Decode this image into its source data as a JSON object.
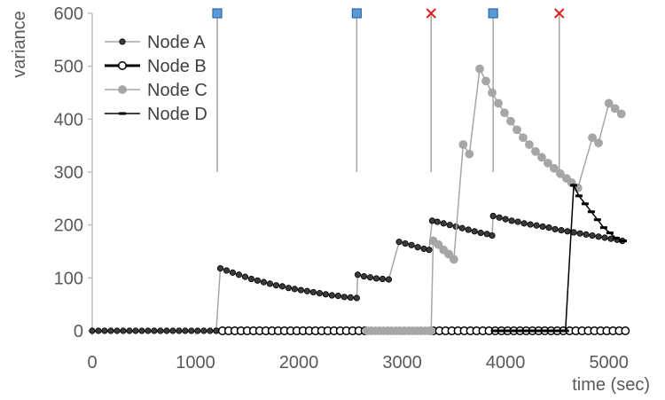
{
  "chart_data": {
    "type": "line",
    "title": "",
    "xlabel": "time (sec)",
    "ylabel": "variance",
    "xlim": [
      0,
      5200
    ],
    "ylim": [
      0,
      600
    ],
    "xticks": [
      0,
      1000,
      2000,
      3000,
      4000,
      5000
    ],
    "yticks": [
      0,
      100,
      200,
      300,
      400,
      500,
      600
    ],
    "grid": false,
    "legend_position": "top-left",
    "events": [
      {
        "x": 1210,
        "type": "square",
        "color": "#5b9bd5"
      },
      {
        "x": 2560,
        "type": "square",
        "color": "#5b9bd5"
      },
      {
        "x": 3280,
        "type": "cross",
        "color": "#e02020"
      },
      {
        "x": 3880,
        "type": "square",
        "color": "#5b9bd5"
      },
      {
        "x": 4520,
        "type": "cross",
        "color": "#e02020"
      }
    ],
    "event_line_ylim": [
      300,
      600
    ],
    "series": [
      {
        "name": "Node A",
        "style": "thin-gray-line-dark-dots",
        "segments": [
          {
            "x": [
              0,
              60,
              120,
              180,
              240,
              300,
              360,
              420,
              480,
              540,
              600,
              660,
              720,
              780,
              840,
              900,
              960,
              1020,
              1080,
              1140,
              1200
            ],
            "y": [
              0,
              0,
              0,
              0,
              0,
              0,
              0,
              0,
              0,
              0,
              0,
              0,
              0,
              0,
              0,
              0,
              0,
              0,
              0,
              0,
              0
            ]
          },
          {
            "x": [
              1200,
              1240,
              1300,
              1360,
              1420,
              1480,
              1540,
              1600,
              1660,
              1720,
              1780,
              1840,
              1900,
              1960,
              2020,
              2080,
              2140,
              2200,
              2260,
              2320,
              2380,
              2440,
              2500,
              2560,
              2570,
              2630,
              2690,
              2750,
              2810,
              2870,
              2970,
              3030,
              3090,
              3150,
              3210,
              3260,
              3290,
              3340,
              3400,
              3460,
              3520,
              3580,
              3640,
              3700,
              3760,
              3820,
              3870,
              3880,
              3940,
              4000,
              4060,
              4120,
              4180,
              4240,
              4300,
              4360,
              4420,
              4480,
              4540,
              4600,
              4660,
              4720,
              4780,
              4840,
              4900,
              4960,
              5020,
              5080,
              5130
            ],
            "y": [
              0,
              118,
              114,
              110,
              106,
              102,
              98,
              95,
              92,
              89,
              86,
              84,
              81,
              79,
              77,
              75,
              73,
              71,
              69,
              67,
              66,
              64,
              63,
              62,
              106,
              103,
              101,
              99,
              98,
              97,
              168,
              165,
              162,
              158,
              155,
              153,
              208,
              206,
              203,
              200,
              197,
              194,
              191,
              188,
              185,
              183,
              180,
              217,
              214,
              211,
              208,
              206,
              203,
              201,
              199,
              197,
              195,
              192,
              190,
              188,
              186,
              184,
              182,
              180,
              178,
              176,
              174,
              172,
              170
            ]
          }
        ]
      },
      {
        "name": "Node B",
        "style": "thick-black-line-open-circles",
        "segments": [
          {
            "x": [
              1260,
              1320,
              1380,
              1440,
              1500,
              1560,
              1620,
              1680,
              1740,
              1800,
              1860,
              1920,
              1980,
              2040,
              2100,
              2160,
              2220,
              2280,
              2340,
              2400,
              2460,
              2520,
              2580,
              2640,
              3300,
              3360,
              3420,
              3480,
              3540,
              3600,
              3660,
              3720,
              3780,
              3840,
              3900,
              3960,
              4020,
              4080,
              4140,
              4200,
              4260,
              4320,
              4380,
              4440,
              4500,
              4560,
              4620,
              4680,
              4740,
              4800,
              4860,
              4920,
              4980,
              5040,
              5100,
              5160
            ],
            "y": [
              0,
              0,
              0,
              0,
              0,
              0,
              0,
              0,
              0,
              0,
              0,
              0,
              0,
              0,
              0,
              0,
              0,
              0,
              0,
              0,
              0,
              0,
              0,
              0,
              0,
              0,
              0,
              0,
              0,
              0,
              0,
              0,
              0,
              0,
              0,
              0,
              0,
              0,
              0,
              0,
              0,
              0,
              0,
              0,
              0,
              0,
              0,
              0,
              0,
              0,
              0,
              0,
              0,
              0,
              0,
              0
            ]
          }
        ]
      },
      {
        "name": "Node C",
        "style": "gray-line-gray-dots",
        "segments": [
          {
            "x": [
              2660,
              2700,
              2740,
              2780,
              2820,
              2860,
              2900,
              2940,
              2980,
              3020,
              3060,
              3100,
              3140,
              3180,
              3220,
              3260,
              3280,
              3300,
              3350,
              3400,
              3450,
              3500,
              3590,
              3650,
              3750,
              3810,
              3870,
              3930,
              3990,
              4050,
              4110,
              4170,
              4230,
              4290,
              4350,
              4410,
              4470,
              4530,
              4590,
              4640,
              4700,
              4840,
              4900,
              5000,
              5060,
              5120
            ],
            "y": [
              0,
              0,
              0,
              0,
              0,
              0,
              0,
              0,
              0,
              0,
              0,
              0,
              0,
              0,
              0,
              0,
              0,
              170,
              163,
              153,
              145,
              135,
              352,
              334,
              495,
              472,
              450,
              430,
              412,
              396,
              380,
              365,
              352,
              339,
              328,
              317,
              307,
              297,
              288,
              280,
              270,
              365,
              355,
              430,
              420,
              410
            ]
          }
        ]
      },
      {
        "name": "Node D",
        "style": "black-line-dash-markers",
        "segments": [
          {
            "x": [
              3900,
              3940,
              3980,
              4020,
              4060,
              4100,
              4140,
              4180,
              4220,
              4260,
              4300,
              4340,
              4380,
              4420,
              4460,
              4500,
              4540,
              4580,
              4660,
              4710,
              4770,
              4830,
              4890,
              4950,
              5010,
              5070,
              5140
            ],
            "y": [
              0,
              0,
              0,
              0,
              0,
              0,
              0,
              0,
              0,
              0,
              0,
              0,
              0,
              0,
              0,
              0,
              0,
              0,
              275,
              255,
              240,
              225,
              210,
              195,
              185,
              175,
              170
            ]
          }
        ]
      }
    ]
  }
}
